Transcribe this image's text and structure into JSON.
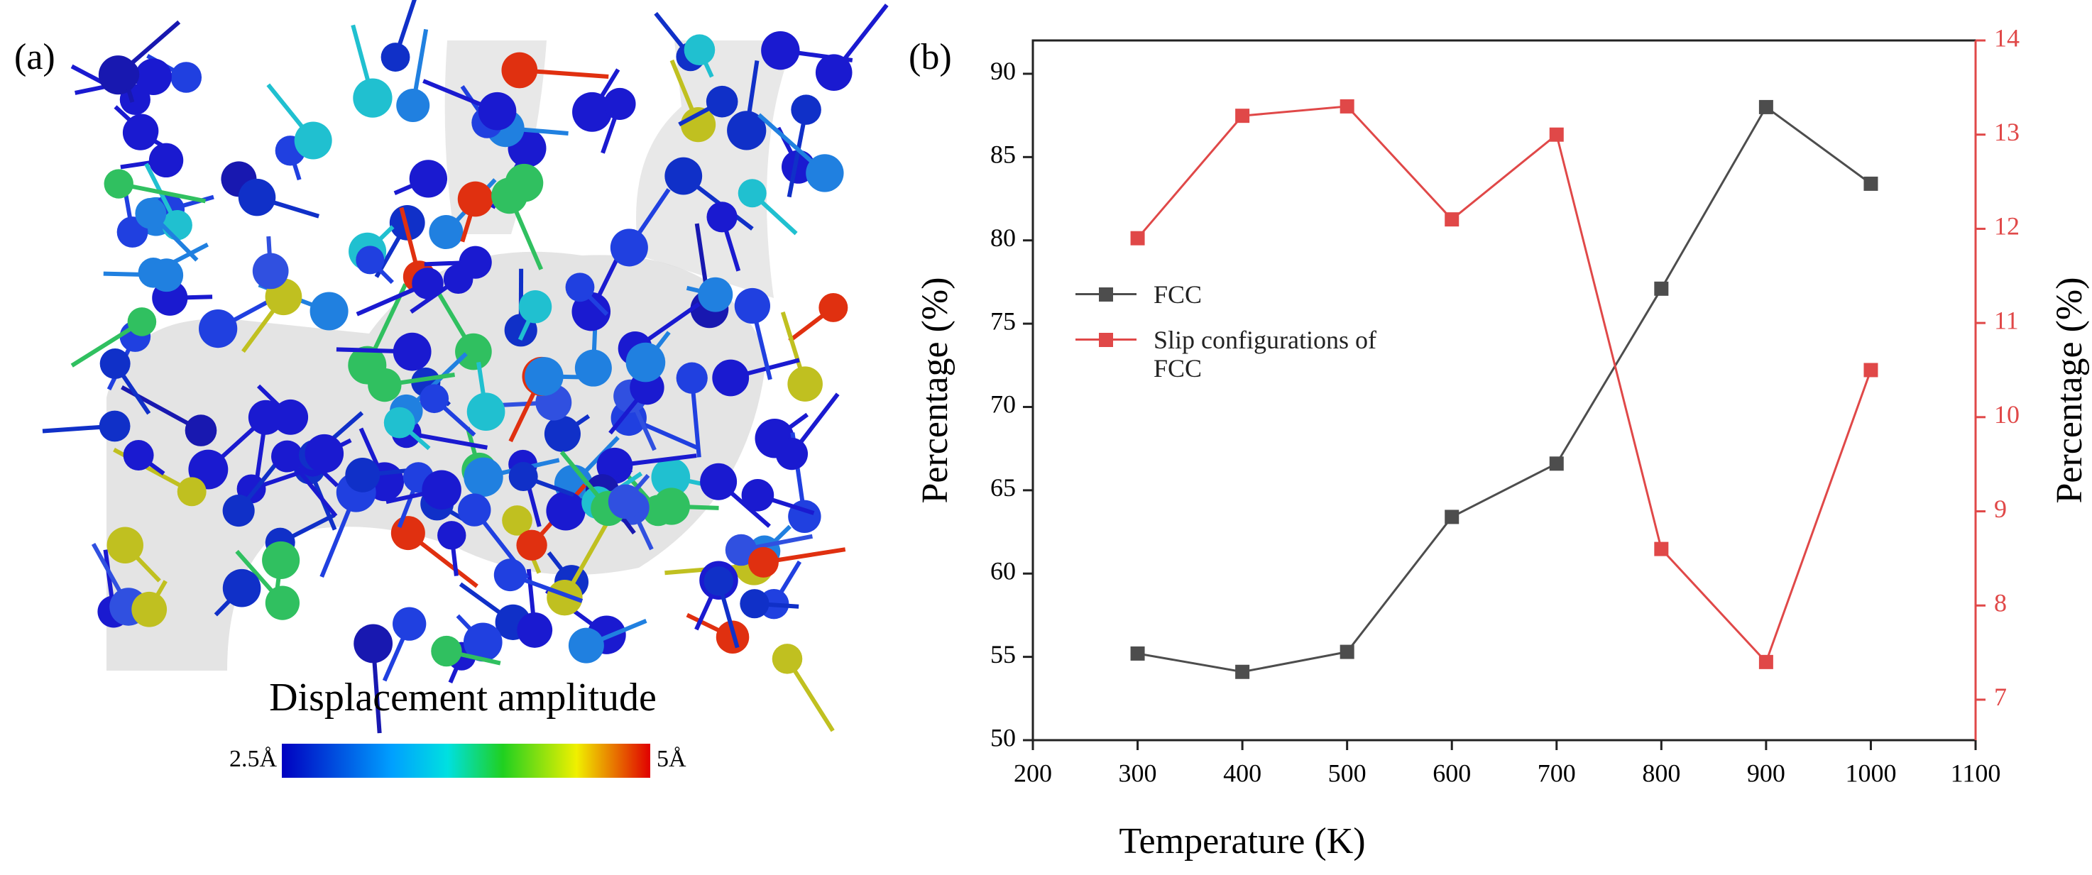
{
  "panel_a": {
    "label": "(a)",
    "colorbar_title": "Displacement amplitude",
    "colorbar_min": "2.5Å",
    "colorbar_max": "5Å"
  },
  "chart_data": {
    "type": "line",
    "panel_label": "(b)",
    "x_label": "Temperature (K)",
    "y_label": "Percentage (%)",
    "y2_label": "Percentage (%)",
    "x": [
      300,
      400,
      500,
      600,
      700,
      800,
      900,
      1000
    ],
    "series": [
      {
        "name": "FCC",
        "color": "#4d4d4d",
        "values": [
          55.2,
          54.1,
          55.3,
          63.4,
          66.6,
          77.1,
          88.0,
          83.4
        ]
      },
      {
        "name": "Slip configurations of FCC",
        "color": "#e04848",
        "axis": "y2",
        "values": [
          11.9,
          13.2,
          13.3,
          12.1,
          13.0,
          8.6,
          7.4,
          10.5
        ]
      }
    ],
    "xlim": [
      200,
      1100
    ],
    "xticks": [
      200,
      300,
      400,
      500,
      600,
      700,
      800,
      900,
      1000,
      1100
    ],
    "ylim": [
      50,
      92
    ],
    "yticks": [
      50,
      55,
      60,
      65,
      70,
      75,
      80,
      85,
      90
    ],
    "y2lim": [
      6.57,
      14
    ],
    "y2ticks": [
      7,
      8,
      9,
      10,
      11,
      12,
      13,
      14
    ],
    "y2_color": "#e04848"
  }
}
